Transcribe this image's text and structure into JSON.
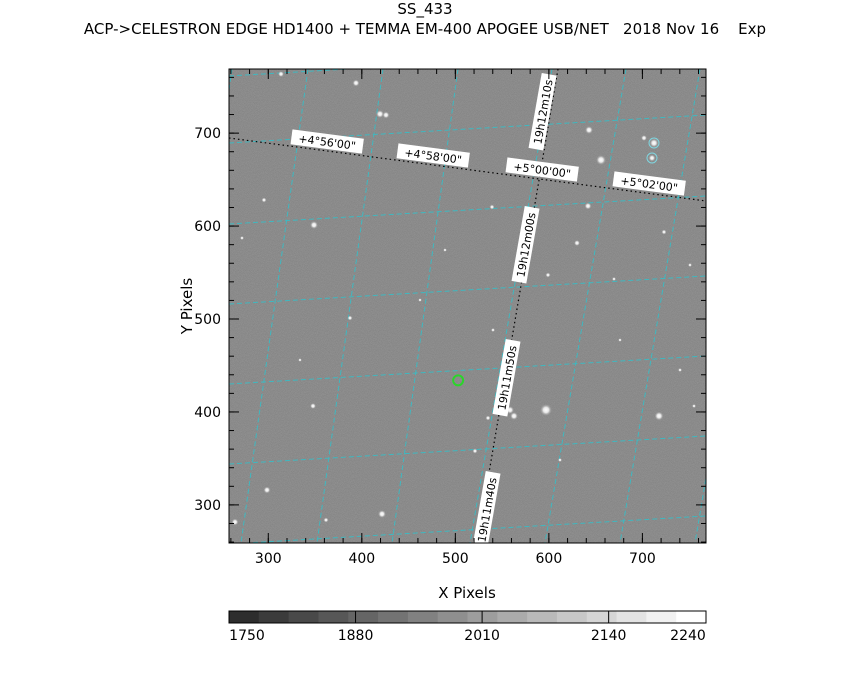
{
  "header": {
    "object_name": "SS_433",
    "instrument_line": "ACP->CELESTRON EDGE HD1400 + TEMMA EM-400 APOGEE USB/NET   2018 Nov 16    Exp"
  },
  "axes": {
    "xlabel": "X Pixels",
    "ylabel": "Y Pixels",
    "x_ticks": [
      "300",
      "400",
      "500",
      "600",
      "700"
    ],
    "y_ticks": [
      "300",
      "400",
      "500",
      "600",
      "700"
    ],
    "x_range": [
      258,
      768
    ],
    "y_range": [
      259,
      769
    ]
  },
  "grid": {
    "color": "#3fb8c0",
    "ra_labels": [
      "19h12m10s",
      "19h12m00s",
      "19h11m50s",
      "19h11m40s"
    ],
    "dec_labels": [
      "+4°56'00\"",
      "+4°58'00\"",
      "+5°00'00\"",
      "+5°02'00\""
    ]
  },
  "target_marker": {
    "color": "#29d629",
    "x": 503,
    "y": 434
  },
  "colorbar": {
    "tick_labels": [
      "1750",
      "1880",
      "2010",
      "2140",
      "2240"
    ],
    "range": [
      1750,
      2240
    ]
  }
}
